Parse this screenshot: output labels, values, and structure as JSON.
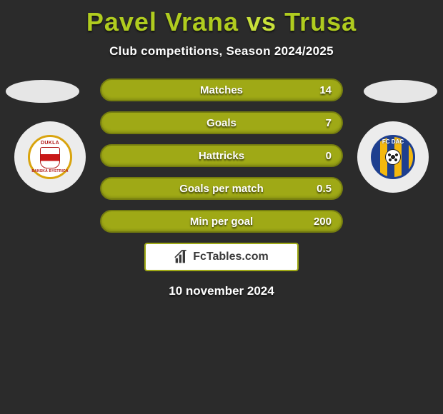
{
  "header": {
    "player1": "Pavel Vrana",
    "vs": "vs",
    "player2": "Trusa",
    "subtitle": "Club competitions, Season 2024/2025",
    "player1_color": "#b0cc1f",
    "vs_color": "#c8e03a",
    "player2_color": "#b0cc1f"
  },
  "stats": {
    "pill_bg": "#9fa916",
    "pill_border": "#757d0f",
    "rows": [
      {
        "label": "Matches",
        "left": "",
        "right": "14"
      },
      {
        "label": "Goals",
        "left": "",
        "right": "7"
      },
      {
        "label": "Hattricks",
        "left": "",
        "right": "0"
      },
      {
        "label": "Goals per match",
        "left": "",
        "right": "0.5"
      },
      {
        "label": "Min per goal",
        "left": "",
        "right": "200"
      }
    ]
  },
  "clubs": {
    "left": {
      "name": "FK Dukla Banská Bystrica",
      "top_text": "DUKLA",
      "bottom_text": "BANSKÁ BYSTRICA"
    },
    "right": {
      "name": "FC DAC 1904",
      "text": "FC DAC"
    }
  },
  "footer": {
    "site": "FcTables.com",
    "date": "10 november 2024"
  },
  "colors": {
    "background": "#2b2b2b",
    "text": "#ffffff",
    "oval": "#e6e6e6",
    "club_bg": "#ececec"
  }
}
